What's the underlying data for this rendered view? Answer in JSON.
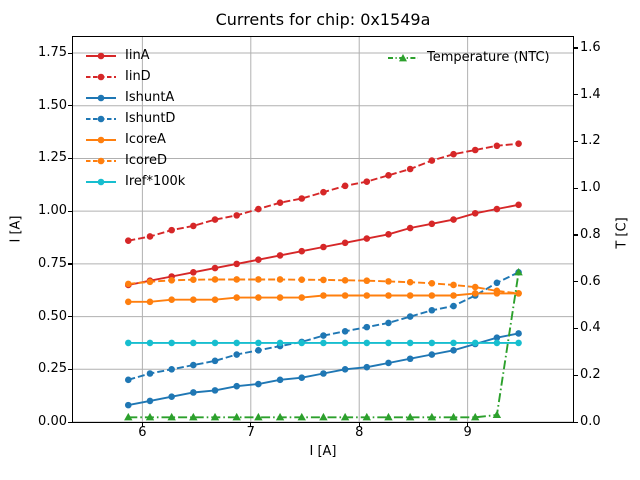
{
  "chart_data": {
    "type": "line",
    "title": "Currents for chip: 0x1549a",
    "xlabel": "I [A]",
    "ylabel_left": "I [A]",
    "ylabel_right": "T [C]",
    "xlim": [
      5.36,
      9.972
    ],
    "ylim_left": [
      0,
      1.826
    ],
    "ylim_right": [
      0,
      1.647
    ],
    "xticks": [
      "6",
      "7",
      "8",
      "9"
    ],
    "yticks_left": [
      "0.00",
      "0.25",
      "0.50",
      "0.75",
      "1.00",
      "1.25",
      "1.50",
      "1.75"
    ],
    "yticks_right": [
      "0.0",
      "0.2",
      "0.4",
      "0.6",
      "0.8",
      "1.0",
      "1.2",
      "1.4",
      "1.6"
    ],
    "grid": true,
    "grid_color": "#b0b0b0",
    "spine_color": "#000000",
    "text_color": "#000000",
    "x": [
      5.87,
      6.07,
      6.27,
      6.47,
      6.67,
      6.87,
      7.07,
      7.27,
      7.47,
      7.67,
      7.87,
      8.07,
      8.27,
      8.47,
      8.67,
      8.87,
      9.07,
      9.27,
      9.47
    ],
    "series": [
      {
        "name": "IinA",
        "color": "#d62728",
        "style": "solid",
        "marker": "circle",
        "axis": "left",
        "values": [
          0.65,
          0.67,
          0.69,
          0.71,
          0.73,
          0.75,
          0.77,
          0.79,
          0.81,
          0.83,
          0.85,
          0.87,
          0.89,
          0.92,
          0.94,
          0.96,
          0.99,
          1.01,
          1.03
        ]
      },
      {
        "name": "IinD",
        "color": "#d62728",
        "style": "dashed",
        "marker": "circle",
        "axis": "left",
        "values": [
          0.86,
          0.88,
          0.91,
          0.93,
          0.96,
          0.98,
          1.01,
          1.04,
          1.06,
          1.09,
          1.12,
          1.14,
          1.17,
          1.2,
          1.24,
          1.27,
          1.29,
          1.31,
          1.32
        ]
      },
      {
        "name": "IshuntA",
        "color": "#1f77b4",
        "style": "solid",
        "marker": "circle",
        "axis": "left",
        "values": [
          0.08,
          0.1,
          0.12,
          0.14,
          0.15,
          0.17,
          0.18,
          0.2,
          0.21,
          0.23,
          0.25,
          0.26,
          0.28,
          0.3,
          0.32,
          0.34,
          0.37,
          0.4,
          0.42
        ]
      },
      {
        "name": "IshuntD",
        "color": "#1f77b4",
        "style": "dashed",
        "marker": "circle",
        "axis": "left",
        "values": [
          0.2,
          0.23,
          0.25,
          0.27,
          0.29,
          0.32,
          0.34,
          0.36,
          0.38,
          0.41,
          0.43,
          0.45,
          0.47,
          0.5,
          0.53,
          0.55,
          0.6,
          0.66,
          0.71
        ]
      },
      {
        "name": "IcoreA",
        "color": "#ff7f0e",
        "style": "solid",
        "marker": "circle",
        "axis": "left",
        "values": [
          0.57,
          0.57,
          0.58,
          0.58,
          0.58,
          0.59,
          0.59,
          0.59,
          0.59,
          0.6,
          0.6,
          0.6,
          0.6,
          0.6,
          0.6,
          0.6,
          0.61,
          0.61,
          0.61
        ]
      },
      {
        "name": "IcoreD",
        "color": "#ff7f0e",
        "style": "dashed",
        "marker": "circle",
        "axis": "left",
        "values": [
          0.655,
          0.665,
          0.672,
          0.675,
          0.676,
          0.676,
          0.676,
          0.676,
          0.675,
          0.674,
          0.672,
          0.67,
          0.667,
          0.663,
          0.658,
          0.65,
          0.64,
          0.622,
          0.61
        ]
      },
      {
        "name": "Iref*100k",
        "color": "#17becf",
        "style": "solid",
        "marker": "circle",
        "axis": "left",
        "values": [
          0.375,
          0.375,
          0.375,
          0.375,
          0.375,
          0.375,
          0.375,
          0.375,
          0.375,
          0.375,
          0.375,
          0.375,
          0.375,
          0.375,
          0.375,
          0.375,
          0.375,
          0.375,
          0.375
        ]
      },
      {
        "name": "Temperature (NTC)",
        "color": "#2ca02c",
        "style": "dashdot",
        "marker": "triangle",
        "axis": "right",
        "values": [
          0.02,
          0.02,
          0.02,
          0.02,
          0.02,
          0.02,
          0.02,
          0.02,
          0.02,
          0.02,
          0.02,
          0.02,
          0.02,
          0.02,
          0.02,
          0.02,
          0.02,
          0.03,
          0.64
        ]
      }
    ],
    "legend_left": [
      "IinA",
      "IinD",
      "IshuntA",
      "IshuntD",
      "IcoreA",
      "IcoreD",
      "Iref*100k"
    ],
    "legend_right": [
      "Temperature (NTC)"
    ],
    "legend_frame": false
  }
}
